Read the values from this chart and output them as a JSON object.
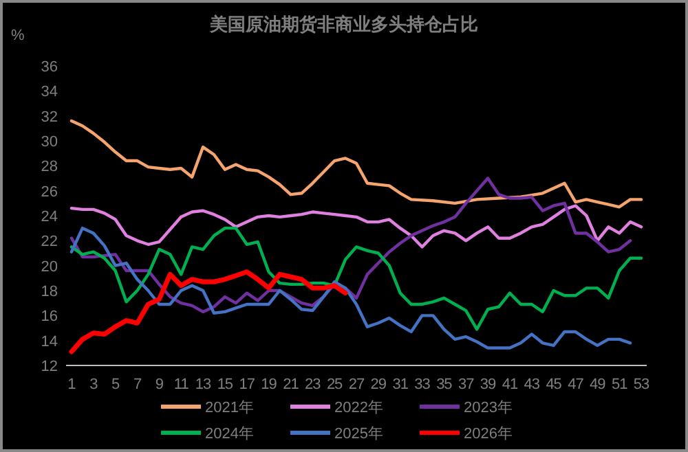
{
  "chart_data": {
    "type": "line",
    "title": "美国原油期货非商业多头持仓占比",
    "ylabel": "%",
    "xlim": [
      0.5,
      53.5
    ],
    "xticks": [
      1,
      3,
      5,
      7,
      9,
      11,
      13,
      15,
      17,
      19,
      21,
      23,
      25,
      27,
      29,
      31,
      33,
      35,
      37,
      39,
      41,
      43,
      45,
      47,
      49,
      51,
      53
    ],
    "ylim": [
      12,
      36
    ],
    "yticks": [
      12,
      14,
      16,
      18,
      20,
      22,
      24,
      26,
      28,
      30,
      32,
      34,
      36
    ],
    "grid": false,
    "legend": "bottom",
    "series": [
      {
        "name": "2021年",
        "color": "#f4a46c",
        "x": [
          1,
          2,
          3,
          4,
          5,
          6,
          7,
          8,
          9,
          10,
          11,
          12,
          13,
          14,
          15,
          16,
          17,
          18,
          19,
          20,
          21,
          22,
          23,
          24,
          25,
          26,
          27,
          28,
          29,
          30,
          31,
          32,
          34,
          36,
          38,
          40,
          42,
          44,
          46,
          47,
          48,
          49,
          50,
          51,
          52,
          53
        ],
        "values": [
          31.6,
          31.2,
          30.6,
          29.9,
          29.1,
          28.4,
          28.4,
          27.9,
          27.8,
          27.7,
          27.8,
          27.1,
          29.5,
          28.9,
          27.7,
          28.1,
          27.7,
          27.6,
          27.1,
          26.5,
          25.7,
          25.8,
          26.6,
          27.5,
          28.4,
          28.6,
          28.2,
          26.6,
          26.5,
          26.4,
          25.8,
          25.3,
          25.2,
          25.0,
          25.3,
          25.4,
          25.5,
          25.8,
          26.6,
          25.1,
          25.3,
          25.1,
          24.9,
          24.7,
          25.3,
          25.3
        ]
      },
      {
        "name": "2022年",
        "color": "#e080e0",
        "x": [
          1,
          2,
          3,
          4,
          5,
          6,
          7,
          8,
          9,
          10,
          11,
          12,
          13,
          14,
          15,
          16,
          17,
          18,
          19,
          20,
          21,
          22,
          23,
          24,
          25,
          26,
          27,
          28,
          29,
          30,
          31,
          32,
          33,
          34,
          35,
          36,
          37,
          38,
          39,
          40,
          41,
          42,
          43,
          44,
          45,
          46,
          47,
          48,
          49,
          50,
          51,
          52,
          53
        ],
        "values": [
          24.6,
          24.5,
          24.5,
          24.2,
          23.7,
          22.4,
          22.0,
          21.7,
          21.9,
          22.9,
          23.9,
          24.3,
          24.4,
          24.1,
          23.7,
          23.1,
          23.5,
          23.9,
          24.0,
          23.9,
          24.0,
          24.1,
          24.3,
          24.2,
          24.1,
          24.0,
          23.9,
          23.5,
          23.5,
          23.7,
          23.0,
          22.4,
          21.5,
          22.4,
          22.8,
          22.6,
          22.0,
          22.6,
          23.1,
          22.2,
          22.2,
          22.6,
          23.1,
          23.3,
          23.9,
          24.5,
          24.8,
          24.0,
          22.0,
          23.1,
          22.6,
          23.5,
          23.1
        ]
      },
      {
        "name": "2023年",
        "color": "#7030a0",
        "x": [
          1,
          2,
          3,
          4,
          5,
          6,
          7,
          8,
          9,
          10,
          11,
          12,
          13,
          14,
          15,
          16,
          17,
          18,
          19,
          20,
          21,
          22,
          23,
          24,
          25,
          26,
          27,
          28,
          29,
          30,
          31,
          32,
          33,
          34,
          35,
          36,
          37,
          38,
          39,
          40,
          41,
          42,
          43,
          44,
          45,
          46,
          47,
          48,
          49,
          50,
          51,
          52
        ],
        "values": [
          22.2,
          20.7,
          20.7,
          20.8,
          20.9,
          19.6,
          19.6,
          19.6,
          18.5,
          17.5,
          17.0,
          16.8,
          16.3,
          16.7,
          17.5,
          17.0,
          17.8,
          17.2,
          18.0,
          18.0,
          17.5,
          17.0,
          16.8,
          17.5,
          18.5,
          18.2,
          17.4,
          19.3,
          20.2,
          21.1,
          21.8,
          22.4,
          22.8,
          23.2,
          23.5,
          23.9,
          25.0,
          26.0,
          27.0,
          25.7,
          25.4,
          25.4,
          25.5,
          24.4,
          24.8,
          25.0,
          22.6,
          22.6,
          21.9,
          21.1,
          21.3,
          22.0
        ]
      },
      {
        "name": "2024年",
        "color": "#00b050",
        "x": [
          1,
          2,
          3,
          4,
          5,
          6,
          7,
          8,
          9,
          10,
          11,
          12,
          13,
          14,
          15,
          16,
          17,
          18,
          19,
          20,
          21,
          22,
          23,
          24,
          25,
          26,
          27,
          28,
          29,
          30,
          31,
          32,
          33,
          34,
          35,
          36,
          37,
          38,
          39,
          40,
          41,
          42,
          43,
          44,
          45,
          46,
          47,
          48,
          49,
          50,
          51,
          52,
          53
        ],
        "values": [
          21.5,
          20.9,
          21.1,
          20.6,
          19.6,
          17.1,
          18.0,
          19.3,
          21.3,
          20.9,
          19.3,
          21.5,
          21.3,
          22.4,
          23.0,
          23.0,
          21.7,
          21.9,
          19.5,
          18.6,
          18.5,
          18.5,
          18.6,
          18.6,
          18.4,
          20.5,
          21.5,
          21.2,
          21.0,
          20.0,
          17.8,
          16.9,
          16.9,
          17.1,
          17.4,
          16.9,
          16.4,
          14.9,
          16.5,
          16.7,
          17.8,
          16.9,
          16.9,
          16.3,
          18.0,
          17.6,
          17.6,
          18.2,
          18.2,
          17.4,
          19.6,
          20.6,
          20.6
        ]
      },
      {
        "name": "2025年",
        "color": "#4472c4",
        "x": [
          1,
          2,
          3,
          4,
          5,
          6,
          7,
          8,
          9,
          10,
          11,
          12,
          13,
          14,
          15,
          16,
          17,
          18,
          19,
          20,
          21,
          22,
          23,
          24,
          25,
          26,
          27,
          28,
          29,
          30,
          31,
          32,
          33,
          34,
          35,
          36,
          37,
          38,
          39,
          40,
          41,
          42,
          43,
          44,
          45,
          46,
          47,
          48,
          49,
          50,
          51,
          52
        ],
        "values": [
          21.1,
          23.0,
          22.6,
          21.6,
          20.0,
          20.2,
          18.9,
          18.0,
          16.9,
          16.9,
          18.0,
          18.4,
          18.0,
          16.2,
          16.3,
          16.6,
          16.9,
          16.9,
          16.9,
          18.0,
          17.3,
          16.5,
          16.4,
          17.5,
          18.7,
          18.2,
          16.9,
          15.1,
          15.4,
          15.8,
          15.2,
          14.7,
          16.0,
          16.0,
          14.9,
          14.1,
          14.3,
          13.9,
          13.4,
          13.4,
          13.4,
          13.8,
          14.5,
          13.8,
          13.6,
          14.7,
          14.7,
          14.1,
          13.6,
          14.1,
          14.1,
          13.8
        ]
      },
      {
        "name": "2026年",
        "color": "#ff0000",
        "x": [
          1,
          2,
          3,
          4,
          5,
          6,
          7,
          8,
          9,
          10,
          11,
          12,
          13,
          14,
          15,
          16,
          17,
          18,
          19,
          20,
          21,
          22,
          23,
          24,
          25,
          26
        ],
        "values": [
          13.1,
          14.1,
          14.6,
          14.5,
          15.1,
          15.6,
          15.4,
          16.9,
          17.3,
          19.3,
          18.4,
          18.9,
          18.7,
          18.7,
          18.9,
          19.2,
          19.5,
          18.9,
          18.2,
          19.3,
          19.1,
          18.9,
          18.2,
          18.2,
          18.4,
          17.8
        ]
      }
    ]
  }
}
